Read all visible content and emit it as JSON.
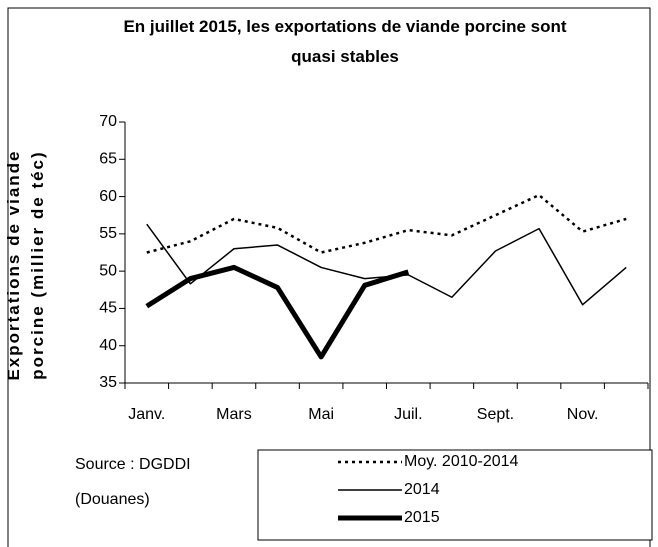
{
  "chart_data": {
    "type": "line",
    "title": "En juillet 2015,  les exportations de viande porcine sont quasi stables",
    "y_label": "Exportations de viande porcine (millier de téc)",
    "source": [
      "Source : DGDDI",
      "(Douanes)"
    ],
    "categories": [
      "Janv.",
      null,
      "Mars",
      null,
      "Mai",
      null,
      "Juil.",
      null,
      "Sept.",
      null,
      "Nov.",
      null
    ],
    "series": [
      {
        "name": "Moy. 2010-2014",
        "color": "#000000",
        "style": "dotted",
        "values": [
          52.5,
          54,
          57,
          55.8,
          52.5,
          53.8,
          55.5,
          54.8,
          57.5,
          60.2,
          55.3,
          57
        ]
      },
      {
        "name": "2014",
        "color": "#000000",
        "style": "thin",
        "values": [
          56.3,
          48.3,
          53,
          53.5,
          50.5,
          49,
          49.5,
          46.5,
          52.7,
          55.7,
          45.5,
          50.5
        ]
      },
      {
        "name": "2015",
        "color": "#000000",
        "style": "thick",
        "values": [
          45.3,
          49,
          50.5,
          47.8,
          38.5,
          48.1,
          49.9,
          null,
          null,
          null,
          null,
          null
        ]
      }
    ],
    "ylim": [
      35,
      70
    ],
    "yticks": [
      35,
      40,
      45,
      50,
      55,
      60,
      65,
      70
    ],
    "grid": false
  }
}
